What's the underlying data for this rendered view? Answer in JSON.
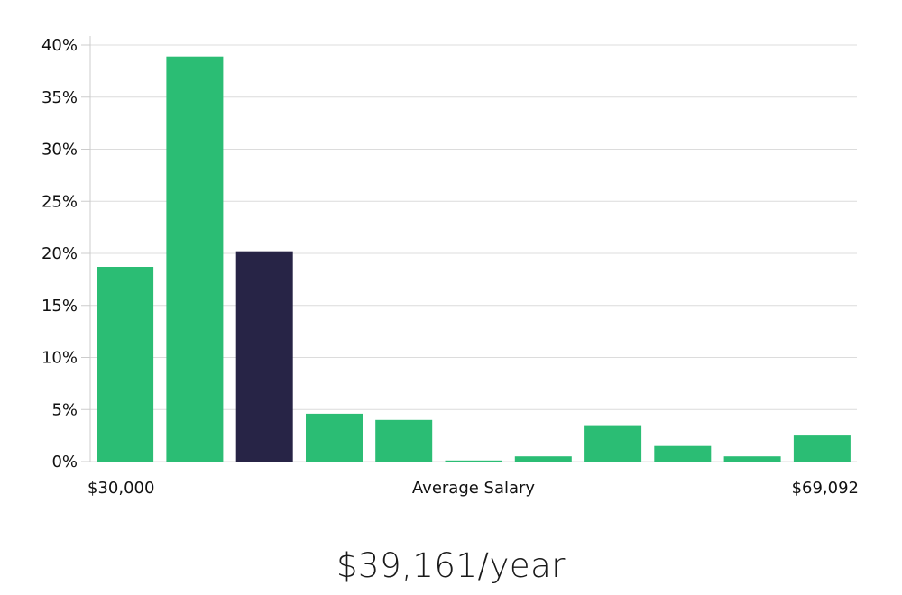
{
  "chart_data": {
    "type": "bar",
    "xlabel": "Average Salary",
    "x_min_label": "$30,000",
    "x_max_label": "$69,092",
    "ylim": [
      0,
      40
    ],
    "yticks": [
      "0%",
      "5%",
      "10%",
      "15%",
      "20%",
      "25%",
      "30%",
      "35%",
      "40%"
    ],
    "grid": true,
    "values": [
      18.7,
      38.9,
      20.2,
      4.6,
      4.0,
      0.1,
      0.5,
      3.5,
      1.5,
      0.5,
      2.5
    ],
    "highlight_index": 2
  },
  "colors": {
    "bar": "#2bbd74",
    "highlight": "#272446",
    "grid": "#dcdcdc",
    "axis": "#cccccc"
  },
  "salary": {
    "value": "$39,161/year"
  }
}
